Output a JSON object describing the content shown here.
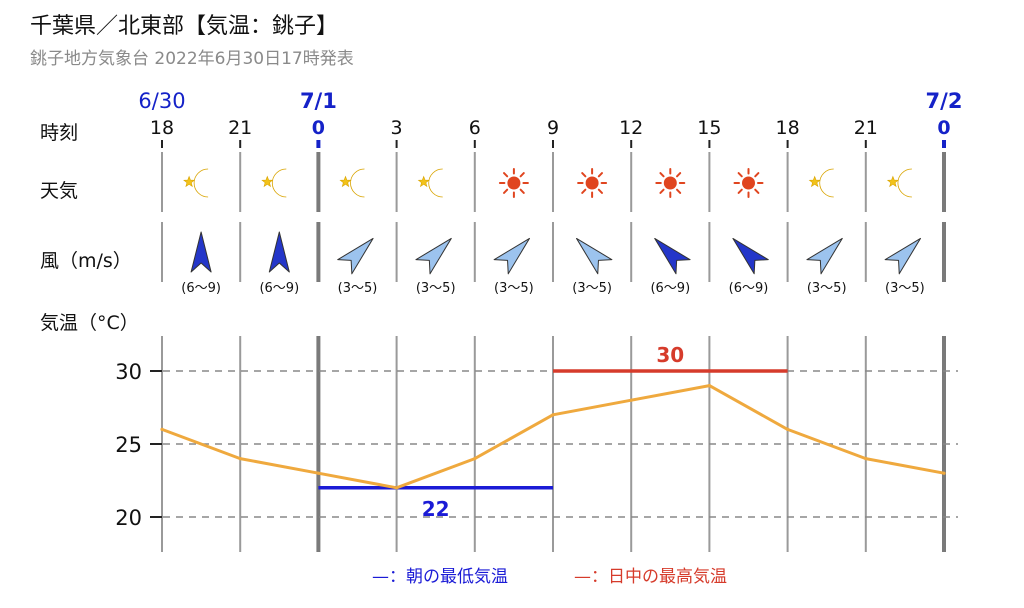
{
  "header": {
    "title": "千葉県／北東部【気温：銚子】",
    "subtitle": "銚子地方気象台 2022年6月30日17時発表"
  },
  "row_labels": {
    "time": "時刻",
    "weather": "天気",
    "wind": "風（m/s）",
    "temp": "気温（°C）"
  },
  "dates": [
    {
      "label": "6/30",
      "at_index": 0
    },
    {
      "label": "7/1",
      "at_index": 2
    },
    {
      "label": "7/2",
      "at_index": 10
    }
  ],
  "hours": [
    "18",
    "21",
    "0",
    "3",
    "6",
    "9",
    "12",
    "15",
    "18",
    "21",
    "0"
  ],
  "day_boundary_indices": [
    2,
    10
  ],
  "weather": [
    "moon-icon",
    "moon-icon",
    "moon-icon",
    "moon-icon",
    "sun-icon",
    "sun-icon",
    "sun-icon",
    "sun-icon",
    "moon-icon",
    "moon-icon"
  ],
  "wind": [
    {
      "direction": "N",
      "range": "(6〜9)",
      "strong": true
    },
    {
      "direction": "N",
      "range": "(6〜9)",
      "strong": true
    },
    {
      "direction": "NE",
      "range": "(3〜5)",
      "strong": false
    },
    {
      "direction": "NE",
      "range": "(3〜5)",
      "strong": false
    },
    {
      "direction": "NE",
      "range": "(3〜5)",
      "strong": false
    },
    {
      "direction": "NW",
      "range": "(3〜5)",
      "strong": false
    },
    {
      "direction": "NW",
      "range": "(6〜9)",
      "strong": true
    },
    {
      "direction": "NW",
      "range": "(6〜9)",
      "strong": true
    },
    {
      "direction": "NE",
      "range": "(3〜5)",
      "strong": false
    },
    {
      "direction": "NE",
      "range": "(3〜5)",
      "strong": false
    }
  ],
  "legend": {
    "min_label": "—：朝の最低気温",
    "max_label": "—：日中の最高気温"
  },
  "colors": {
    "date_blue": "#1522c8",
    "min_line": "#1b1bd6",
    "max_line": "#d63b2b",
    "temp_line": "#efa93e",
    "moon": "#f2c21a",
    "sun": "#e0451f",
    "arrow_strong": "#2436c9",
    "arrow_weak": "#9cc3ee"
  },
  "chart_data": {
    "type": "line",
    "title": "",
    "xlabel": "時刻",
    "ylabel": "気温（°C）",
    "categories": [
      "18",
      "21",
      "0",
      "3",
      "6",
      "9",
      "12",
      "15",
      "18",
      "21",
      "0"
    ],
    "series": [
      {
        "values": [
          26,
          24,
          23,
          22,
          24,
          27,
          28,
          29,
          26,
          24,
          23
        ]
      }
    ],
    "ylim": [
      18,
      32
    ],
    "yticks": [
      20,
      25,
      30
    ],
    "min_temp": {
      "value": 22,
      "from_index": 2,
      "to_index": 5,
      "label": "22"
    },
    "max_temp": {
      "value": 30,
      "from_index": 5,
      "to_index": 8,
      "label": "30"
    },
    "grid": true
  }
}
